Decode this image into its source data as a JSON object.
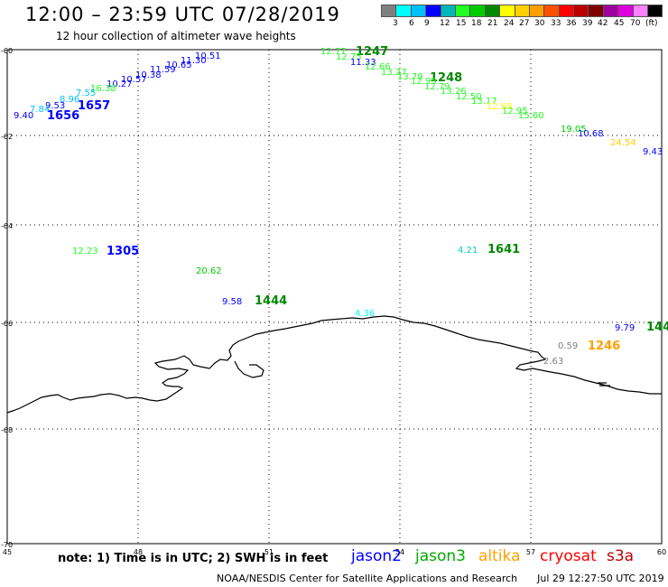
{
  "header": {
    "title": "12:00 – 23:59 UTC 07/28/2019",
    "subtitle": "12 hour collection of altimeter wave heights"
  },
  "colorbar": {
    "colors": [
      "#808080",
      "#00ffff",
      "#00bfff",
      "#0000ff",
      "#00b8b8",
      "#20ff20",
      "#00cc00",
      "#008800",
      "#ffff00",
      "#ffd000",
      "#ffa000",
      "#ff5000",
      "#ff0000",
      "#bb0000",
      "#800000",
      "#a000a0",
      "#dd00dd",
      "#ff80ff",
      "#000000"
    ],
    "labels": [
      "3",
      "6",
      "9",
      "12",
      "15",
      "18",
      "21",
      "24",
      "27",
      "30",
      "33",
      "36",
      "39",
      "42",
      "45",
      "70",
      "(ft)"
    ]
  },
  "axes": {
    "lat_labels": [
      "-60",
      "-62",
      "-64",
      "-66",
      "-68",
      "-70"
    ],
    "lon_labels": [
      "45",
      "48",
      "51",
      "54",
      "57",
      "60"
    ]
  },
  "map": {
    "times": [
      {
        "text": "1247",
        "color": "#008800"
      },
      {
        "text": "1248",
        "color": "#008800"
      },
      {
        "text": "1656",
        "color": "#0000ff"
      },
      {
        "text": "1657",
        "color": "#0000ff"
      },
      {
        "text": "1305",
        "color": "#0000ff"
      },
      {
        "text": "1641",
        "color": "#008800"
      },
      {
        "text": "1444",
        "color": "#008800"
      },
      {
        "text": "1246",
        "color": "#ffa000"
      },
      {
        "text": "144",
        "color": "#008800"
      }
    ],
    "values": [
      {
        "text": "10.51",
        "color": "#0000ff"
      },
      {
        "text": "11.30",
        "color": "#0000ff"
      },
      {
        "text": "10.65",
        "color": "#0000ff"
      },
      {
        "text": "11.59",
        "color": "#0000ff"
      },
      {
        "text": "10.38",
        "color": "#0000ff"
      },
      {
        "text": "10.57",
        "color": "#0000ff"
      },
      {
        "text": "10.27",
        "color": "#0000ff"
      },
      {
        "text": "16.38",
        "color": "#20ff20"
      },
      {
        "text": "7.55",
        "color": "#00bfff"
      },
      {
        "text": "8.96",
        "color": "#00bfff"
      },
      {
        "text": "9.53",
        "color": "#0000ff"
      },
      {
        "text": "7.84",
        "color": "#00bfff"
      },
      {
        "text": "9.40",
        "color": "#0000ff"
      },
      {
        "text": "12.77",
        "color": "#20ff20"
      },
      {
        "text": "12.75",
        "color": "#20ff20"
      },
      {
        "text": "11.33",
        "color": "#0000ff"
      },
      {
        "text": "12.66",
        "color": "#20ff20"
      },
      {
        "text": "13.27",
        "color": "#20ff20"
      },
      {
        "text": "13.79",
        "color": "#20ff20"
      },
      {
        "text": "12.95",
        "color": "#20ff20"
      },
      {
        "text": "12.79",
        "color": "#20ff20"
      },
      {
        "text": "13.26",
        "color": "#20ff20"
      },
      {
        "text": "12.50",
        "color": "#20ff20"
      },
      {
        "text": "13.17",
        "color": "#20ff20"
      },
      {
        "text": "12.68",
        "color": "#ffff00"
      },
      {
        "text": "12.95",
        "color": "#20ff20"
      },
      {
        "text": "15.60",
        "color": "#20ff20"
      },
      {
        "text": "19.05",
        "color": "#00cc00"
      },
      {
        "text": "10.68",
        "color": "#0000ff"
      },
      {
        "text": "24.54",
        "color": "#ffd000"
      },
      {
        "text": "9.43",
        "color": "#0000ff"
      },
      {
        "text": "12.23",
        "color": "#20ff20"
      },
      {
        "text": "20.62",
        "color": "#00cc00"
      },
      {
        "text": "9.58",
        "color": "#0000ff"
      },
      {
        "text": "4.21",
        "color": "#00cccc"
      },
      {
        "text": "4.36",
        "color": "#00ffff"
      },
      {
        "text": "9.79",
        "color": "#0000ff"
      },
      {
        "text": "0.59",
        "color": "#808080"
      },
      {
        "text": "2.63",
        "color": "#808080"
      }
    ]
  },
  "legend": {
    "note": "note:  1) Time is in UTC;  2) SWH is in feet",
    "satellites": [
      {
        "text": "jason2",
        "color": "#0000ff"
      },
      {
        "text": "jason3",
        "color": "#00aa00"
      },
      {
        "text": "altika",
        "color": "#ffa000"
      },
      {
        "text": "cryosat",
        "color": "#ff0000"
      },
      {
        "text": "s3a",
        "color": "#bb0000"
      }
    ]
  },
  "footer": {
    "credit": "NOAA/NESDIS Center for Satellite Applications and Research",
    "timestamp": "Jul 29 12:27:50 UTC 2019"
  }
}
